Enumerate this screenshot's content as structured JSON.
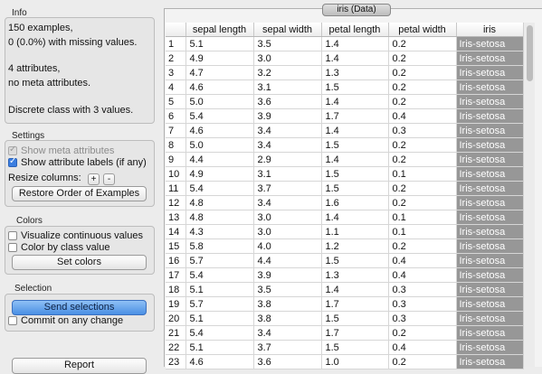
{
  "info": {
    "title": "Info",
    "lines": [
      "150 examples,",
      "0 (0.0%) with missing values.",
      "4 attributes,",
      "no meta attributes.",
      "Discrete class with 3 values."
    ]
  },
  "settings": {
    "title": "Settings",
    "show_meta_label": "Show meta attributes",
    "show_attr_label": "Show attribute labels (if any)",
    "resize_label": "Resize columns:",
    "plus": "+",
    "minus": "-",
    "restore_label": "Restore Order of Examples"
  },
  "colors": {
    "title": "Colors",
    "visualize_label": "Visualize continuous values",
    "color_class_label": "Color by class value",
    "set_colors_label": "Set colors"
  },
  "selection": {
    "title": "Selection",
    "send_label": "Send selections",
    "commit_label": "Commit on any change"
  },
  "report_label": "Report",
  "tab_title": "iris (Data)",
  "table": {
    "headers": [
      "",
      "sepal length",
      "sepal width",
      "petal length",
      "petal width",
      "iris"
    ],
    "rows": [
      [
        "1",
        "5.1",
        "3.5",
        "1.4",
        "0.2",
        "Iris-setosa"
      ],
      [
        "2",
        "4.9",
        "3.0",
        "1.4",
        "0.2",
        "Iris-setosa"
      ],
      [
        "3",
        "4.7",
        "3.2",
        "1.3",
        "0.2",
        "Iris-setosa"
      ],
      [
        "4",
        "4.6",
        "3.1",
        "1.5",
        "0.2",
        "Iris-setosa"
      ],
      [
        "5",
        "5.0",
        "3.6",
        "1.4",
        "0.2",
        "Iris-setosa"
      ],
      [
        "6",
        "5.4",
        "3.9",
        "1.7",
        "0.4",
        "Iris-setosa"
      ],
      [
        "7",
        "4.6",
        "3.4",
        "1.4",
        "0.3",
        "Iris-setosa"
      ],
      [
        "8",
        "5.0",
        "3.4",
        "1.5",
        "0.2",
        "Iris-setosa"
      ],
      [
        "9",
        "4.4",
        "2.9",
        "1.4",
        "0.2",
        "Iris-setosa"
      ],
      [
        "10",
        "4.9",
        "3.1",
        "1.5",
        "0.1",
        "Iris-setosa"
      ],
      [
        "11",
        "5.4",
        "3.7",
        "1.5",
        "0.2",
        "Iris-setosa"
      ],
      [
        "12",
        "4.8",
        "3.4",
        "1.6",
        "0.2",
        "Iris-setosa"
      ],
      [
        "13",
        "4.8",
        "3.0",
        "1.4",
        "0.1",
        "Iris-setosa"
      ],
      [
        "14",
        "4.3",
        "3.0",
        "1.1",
        "0.1",
        "Iris-setosa"
      ],
      [
        "15",
        "5.8",
        "4.0",
        "1.2",
        "0.2",
        "Iris-setosa"
      ],
      [
        "16",
        "5.7",
        "4.4",
        "1.5",
        "0.4",
        "Iris-setosa"
      ],
      [
        "17",
        "5.4",
        "3.9",
        "1.3",
        "0.4",
        "Iris-setosa"
      ],
      [
        "18",
        "5.1",
        "3.5",
        "1.4",
        "0.3",
        "Iris-setosa"
      ],
      [
        "19",
        "5.7",
        "3.8",
        "1.7",
        "0.3",
        "Iris-setosa"
      ],
      [
        "20",
        "5.1",
        "3.8",
        "1.5",
        "0.3",
        "Iris-setosa"
      ],
      [
        "21",
        "5.4",
        "3.4",
        "1.7",
        "0.2",
        "Iris-setosa"
      ],
      [
        "22",
        "5.1",
        "3.7",
        "1.5",
        "0.4",
        "Iris-setosa"
      ],
      [
        "23",
        "4.6",
        "3.6",
        "1.0",
        "0.2",
        "Iris-setosa"
      ]
    ]
  }
}
